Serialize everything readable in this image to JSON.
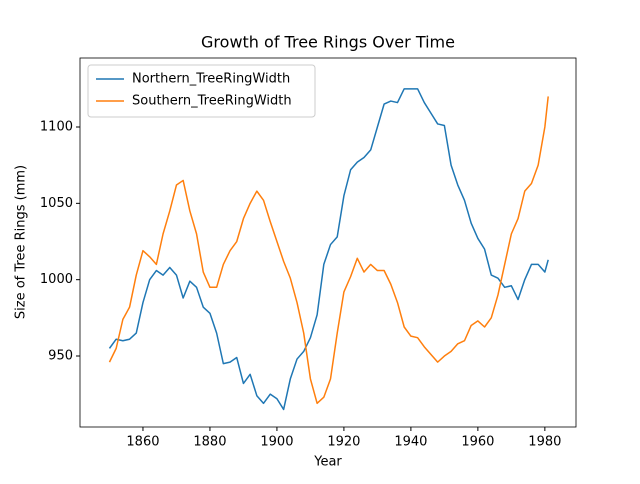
{
  "chart_data": {
    "type": "line",
    "title": "Growth of Tree Rings Over Time",
    "x_label": "Year",
    "y_label": "Size of Tree Rings (mm)",
    "x": [
      1850,
      1852,
      1854,
      1856,
      1858,
      1860,
      1862,
      1864,
      1866,
      1868,
      1870,
      1872,
      1874,
      1876,
      1878,
      1880,
      1882,
      1884,
      1886,
      1888,
      1890,
      1892,
      1894,
      1896,
      1898,
      1900,
      1902,
      1904,
      1906,
      1908,
      1910,
      1912,
      1914,
      1916,
      1918,
      1920,
      1922,
      1924,
      1926,
      1928,
      1930,
      1932,
      1934,
      1936,
      1938,
      1940,
      1942,
      1944,
      1946,
      1948,
      1950,
      1952,
      1954,
      1956,
      1958,
      1960,
      1962,
      1964,
      1966,
      1968,
      1970,
      1972,
      1974,
      1976,
      1978,
      1980,
      1981
    ],
    "series": [
      {
        "name": "Northern_TreeRingWidth",
        "color": "#1f77b4",
        "values": [
          955,
          961,
          960,
          961,
          965,
          985,
          1000,
          1006,
          1003,
          1008,
          1003,
          988,
          999,
          995,
          982,
          978,
          965,
          945,
          946,
          949,
          932,
          938,
          924,
          919,
          925,
          922,
          915,
          935,
          948,
          953,
          962,
          977,
          1010,
          1023,
          1028,
          1055,
          1072,
          1077,
          1080,
          1085,
          1100,
          1115,
          1117,
          1116,
          1125,
          1125,
          1125,
          1116,
          1109,
          1102,
          1101,
          1075,
          1062,
          1052,
          1037,
          1027,
          1020,
          1003,
          1001,
          995,
          996,
          987,
          1000,
          1010,
          1010,
          1005,
          1013
        ]
      },
      {
        "name": "Southern_TreeRingWidth",
        "color": "#ff7f0e",
        "values": [
          946,
          955,
          974,
          982,
          1003,
          1019,
          1015,
          1010,
          1030,
          1045,
          1062,
          1065,
          1045,
          1030,
          1005,
          995,
          995,
          1010,
          1019,
          1025,
          1040,
          1050,
          1058,
          1052,
          1038,
          1025,
          1012,
          1001,
          985,
          965,
          935,
          919,
          923,
          935,
          965,
          992,
          1002,
          1014,
          1005,
          1010,
          1006,
          1006,
          997,
          985,
          969,
          963,
          962,
          956,
          951,
          946,
          950,
          953,
          958,
          960,
          970,
          973,
          969,
          975,
          990,
          1010,
          1030,
          1040,
          1058,
          1063,
          1075,
          1100,
          1120
        ]
      }
    ],
    "xlim": [
      1841.2,
      1989.3
    ],
    "ylim": [
      903.5,
      1145.2
    ],
    "xticks": [
      1860,
      1880,
      1900,
      1920,
      1940,
      1960,
      1980
    ],
    "yticks": [
      950,
      1000,
      1050,
      1100
    ],
    "legend": "upper left"
  }
}
